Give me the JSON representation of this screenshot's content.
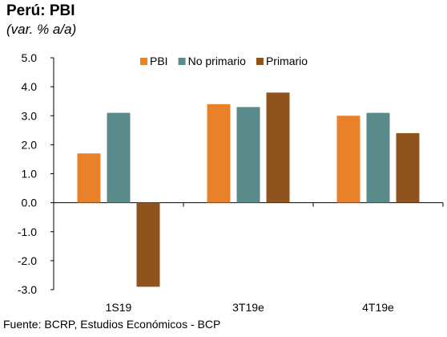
{
  "chart_data": {
    "type": "bar",
    "title": "Perú: PBI",
    "subtitle": "(var. % a/a)",
    "categories": [
      "1S19",
      "3T19e",
      "4T19e"
    ],
    "series": [
      {
        "name": "PBI",
        "color": "#E8812A",
        "values": [
          1.7,
          3.4,
          3.0
        ]
      },
      {
        "name": "No primario",
        "color": "#5B8A8A",
        "values": [
          3.1,
          3.3,
          3.1
        ]
      },
      {
        "name": "Primario",
        "color": "#8F531D",
        "values": [
          -2.9,
          3.8,
          2.4
        ]
      }
    ],
    "ylim": [
      -3.0,
      5.0
    ],
    "yticks": [
      "5.0",
      "4.0",
      "3.0",
      "2.0",
      "1.0",
      "0.0",
      "-1.0",
      "-2.0",
      "-3.0"
    ],
    "ytick_values": [
      5,
      4,
      3,
      2,
      1,
      0,
      -1,
      -2,
      -3
    ],
    "grid": false,
    "legend_position": "top-right",
    "source": "Fuente: BCRP, Estudios Económicos - BCP"
  }
}
